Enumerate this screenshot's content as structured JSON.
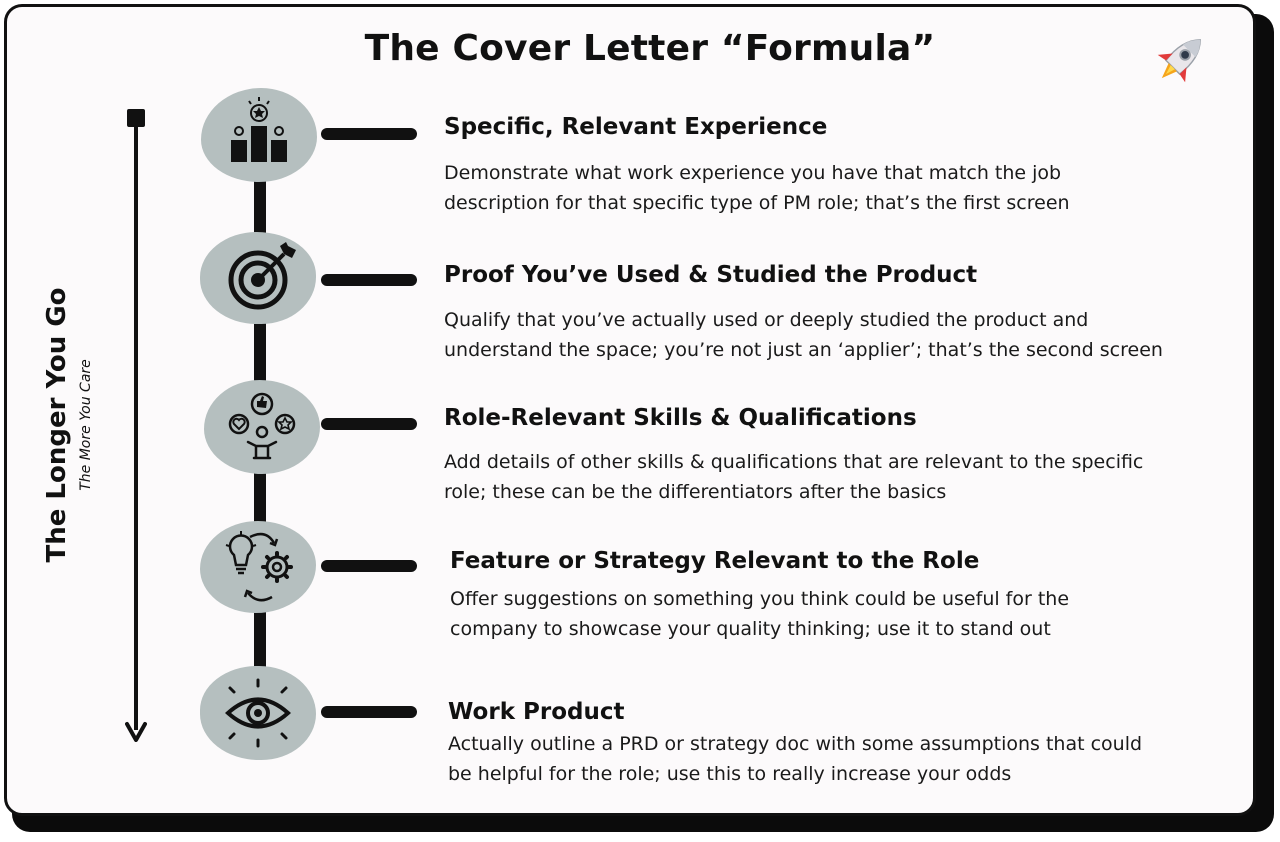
{
  "title": "The Cover Letter “Formula”",
  "side_label": {
    "main": "The Longer You Go",
    "sub": "The More You Care"
  },
  "icons": {
    "header": "rocket-icon",
    "step_1": "podium-icon",
    "step_2": "target-icon",
    "step_3": "skills-icon",
    "step_4": "idea-gear-icon",
    "step_5": "eye-icon"
  },
  "colors": {
    "blob": "#b5bfbf",
    "ink": "#111111",
    "card": "#fcfafb"
  },
  "steps": [
    {
      "heading": "Specific, Relevant Experience",
      "body_1": "Demonstrate what work experience you have that match the job",
      "body_2": "description for that specific type of PM role; that’s the first screen"
    },
    {
      "heading": "Proof You’ve Used & Studied the Product",
      "body_1": "Qualify that you’ve actually used or deeply studied the product and",
      "body_2": "understand the space; you’re not just an ‘applier’; that’s the second screen"
    },
    {
      "heading": "Role-Relevant Skills & Qualifications",
      "body_1": "Add details of other skills & qualifications that are relevant to the specific",
      "body_2": "role; these can be the differentiators after the basics"
    },
    {
      "heading": "Feature or Strategy Relevant to the Role",
      "body_1": "Offer suggestions on something you think could be useful for the",
      "body_2": "company to showcase your quality thinking; use it to stand out"
    },
    {
      "heading": "Work Product",
      "body_1": "Actually outline a PRD or strategy doc with some assumptions that could",
      "body_2": "be helpful for the role; use this to really increase your odds"
    }
  ]
}
